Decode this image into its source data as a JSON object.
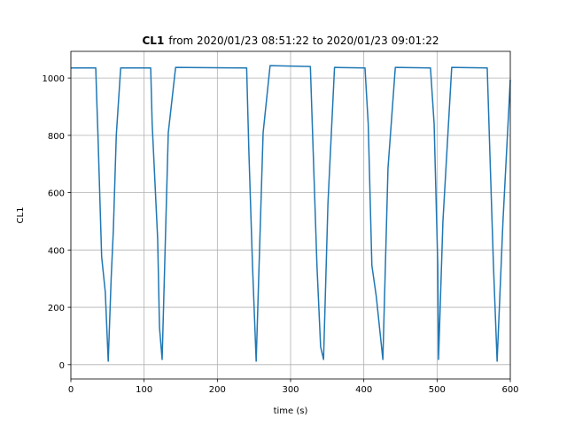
{
  "chart_data": {
    "type": "line",
    "title": {
      "bold": "CL1",
      "text": "from 2020/01/23 08:51:22 to 2020/01/23 09:01:22"
    },
    "x_label": "time (s)",
    "y_label": "CL1",
    "x": [
      0,
      34,
      35,
      37,
      42,
      47,
      51,
      55,
      58,
      62,
      68,
      109,
      111,
      118.5,
      121,
      124.6,
      133,
      143,
      240,
      243,
      248,
      253,
      262.5,
      272,
      327,
      330,
      336,
      341,
      345,
      351,
      360,
      401.6,
      406,
      411,
      417,
      426,
      433,
      443,
      491,
      496,
      501,
      502,
      508,
      520,
      568.5,
      572,
      577,
      582,
      590,
      600
    ],
    "values": [
      1035,
      1035,
      950,
      800,
      377,
      253,
      12,
      300,
      469,
      800,
      1035,
      1035,
      840,
      438,
      130,
      18,
      809,
      1037,
      1035,
      747,
      346,
      12,
      809,
      1043,
      1040,
      809,
      346,
      62,
      18,
      562,
      1037,
      1035,
      840,
      346,
      238,
      18,
      685,
      1037,
      1035,
      840,
      346,
      18,
      500,
      1037,
      1035,
      747,
      346,
      12,
      500,
      994
    ],
    "color": "#1f77b4",
    "xlim": [
      0,
      600
    ],
    "ylim": [
      -50,
      1093
    ],
    "xticks": [
      0,
      100,
      200,
      300,
      400,
      500,
      600
    ],
    "yticks": [
      0,
      200,
      400,
      600,
      800,
      1000
    ],
    "grid": true
  }
}
